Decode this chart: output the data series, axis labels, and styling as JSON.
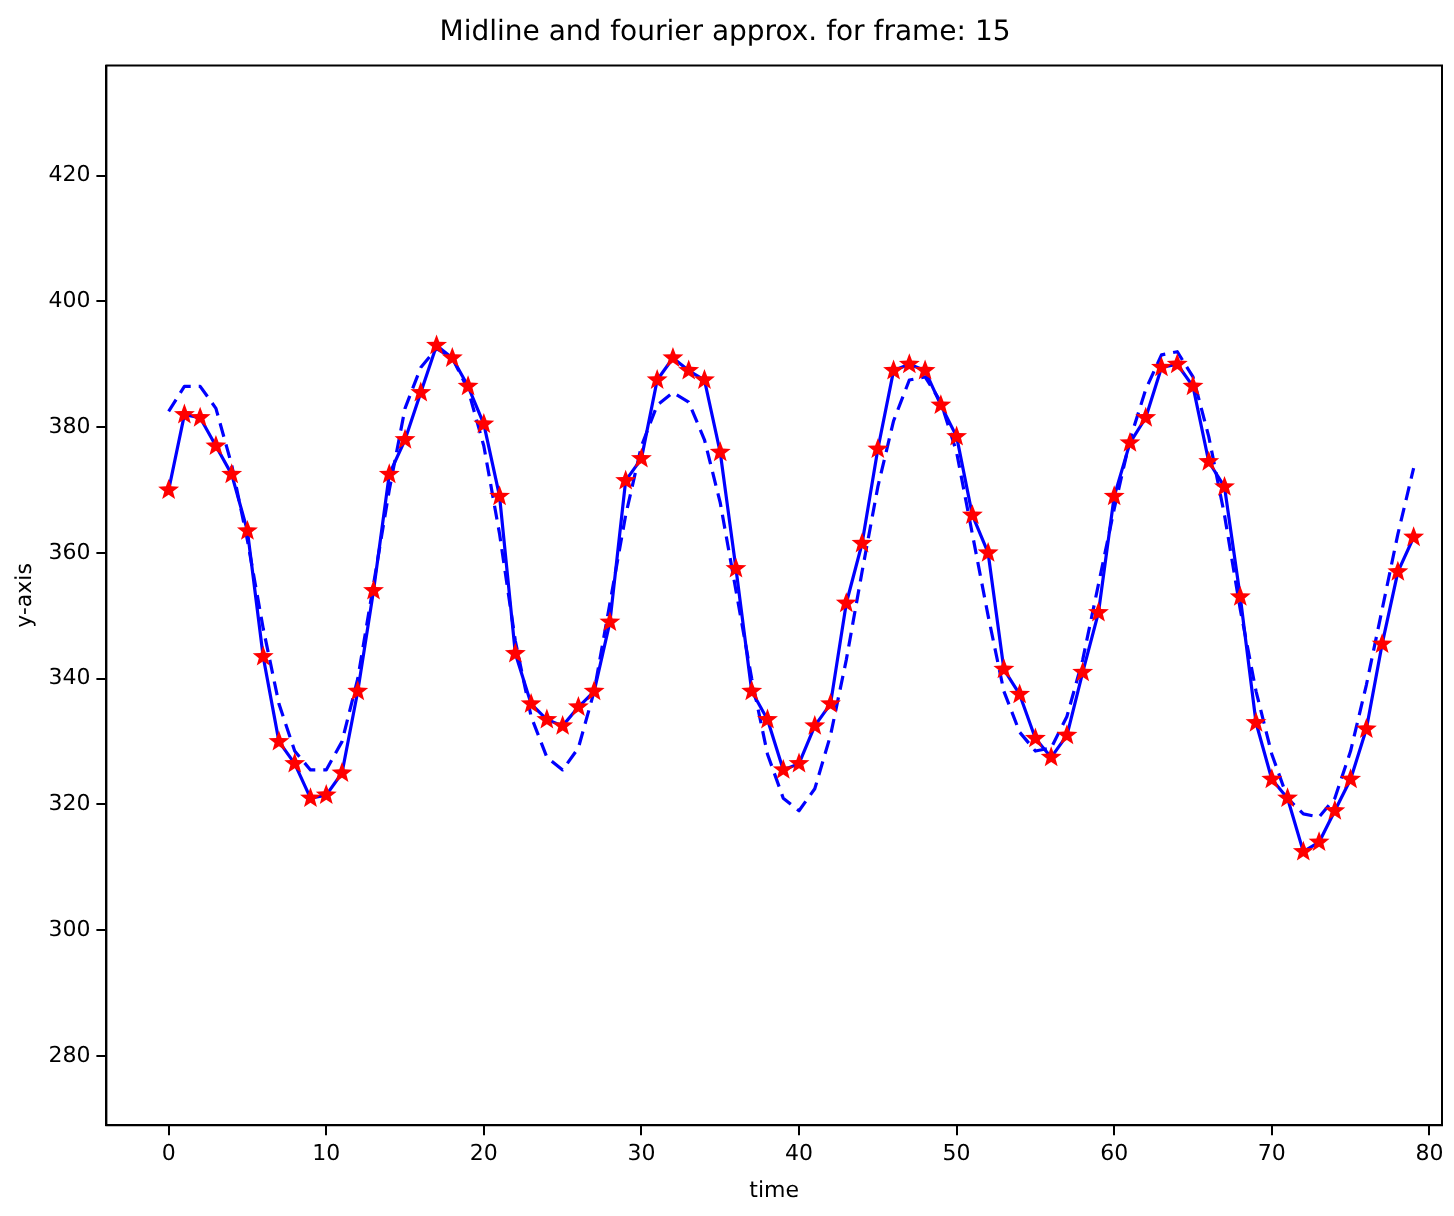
{
  "chart_data": {
    "type": "line",
    "title": "Midline and fourier approx. for frame: 15",
    "xlabel": "time",
    "ylabel": "y-axis",
    "x": [
      0,
      1,
      2,
      3,
      4,
      5,
      6,
      7,
      8,
      9,
      10,
      11,
      12,
      13,
      14,
      15,
      16,
      17,
      18,
      19,
      20,
      21,
      22,
      23,
      24,
      25,
      26,
      27,
      28,
      29,
      30,
      31,
      32,
      33,
      34,
      35,
      36,
      37,
      38,
      39,
      40,
      41,
      42,
      43,
      44,
      45,
      46,
      47,
      48,
      49,
      50,
      51,
      52,
      53,
      54,
      55,
      56,
      57,
      58,
      59,
      60,
      61,
      62,
      63,
      64,
      65,
      66,
      67,
      68,
      69,
      70,
      71,
      72,
      73,
      74,
      75,
      76,
      77,
      78,
      79
    ],
    "series": [
      {
        "type": "line",
        "color": "#0000ff",
        "line_style": "solid",
        "marker": "none",
        "values": [
          370,
          382,
          381.5,
          377,
          372.5,
          363.5,
          343.5,
          330,
          326.5,
          321,
          321.5,
          325,
          338,
          354,
          372.5,
          378,
          385.5,
          393,
          391,
          386.5,
          380.5,
          369,
          344,
          336,
          333.5,
          332.5,
          335.5,
          338,
          349,
          371.5,
          375,
          387.5,
          391,
          389,
          387.5,
          376,
          357.5,
          338,
          333.5,
          325.5,
          326.5,
          332.5,
          336,
          352,
          361.5,
          376.5,
          389,
          390,
          389,
          383.5,
          378.5,
          366,
          360,
          341.5,
          337.5,
          330.5,
          327.5,
          331,
          341,
          350.5,
          369,
          377.5,
          381.5,
          389.5,
          390,
          386.5,
          374.5,
          370.5,
          353,
          333,
          324,
          321,
          312.5,
          314,
          319,
          324,
          332,
          345.5,
          357,
          362.5
        ]
      },
      {
        "type": "line",
        "color": "#0000ff",
        "line_style": "dashed",
        "marker": "none",
        "values": [
          382.5,
          386.5,
          386.5,
          383,
          374,
          362,
          348,
          336,
          328.5,
          325.5,
          325.5,
          330,
          340,
          355,
          370,
          383,
          389.5,
          392.5,
          391,
          386,
          377,
          363,
          346,
          334,
          327.5,
          325.5,
          329,
          338,
          352,
          366,
          377,
          383.5,
          385.5,
          384,
          378,
          368,
          354,
          340,
          328,
          321,
          319,
          322.5,
          331,
          343,
          357,
          370.5,
          381,
          387.5,
          388,
          384,
          376,
          363,
          350,
          338,
          331.5,
          328.5,
          329,
          334,
          343,
          355,
          367,
          378,
          386,
          391.5,
          392,
          388,
          378.5,
          366,
          351,
          338,
          328,
          321,
          318.5,
          318,
          321,
          328.5,
          339,
          351,
          363,
          373.5
        ]
      },
      {
        "type": "scatter",
        "color": "#ff0000",
        "marker": "star",
        "values": [
          370,
          382,
          381.5,
          377,
          372.5,
          363.5,
          343.5,
          330,
          326.5,
          321,
          321.5,
          325,
          338,
          354,
          372.5,
          378,
          385.5,
          393,
          391,
          386.5,
          380.5,
          369,
          344,
          336,
          333.5,
          332.5,
          335.5,
          338,
          349,
          371.5,
          375,
          387.5,
          391,
          389,
          387.5,
          376,
          357.5,
          338,
          333.5,
          325.5,
          326.5,
          332.5,
          336,
          352,
          361.5,
          376.5,
          389,
          390,
          389,
          383.5,
          378.5,
          366,
          360,
          341.5,
          337.5,
          330.5,
          327.5,
          331,
          341,
          350.5,
          369,
          377.5,
          381.5,
          389.5,
          390,
          386.5,
          374.5,
          370.5,
          353,
          333,
          324,
          321,
          312.5,
          314,
          319,
          324,
          332,
          345.5,
          357,
          362.5
        ]
      }
    ],
    "xlim": [
      -3.95,
      80.8
    ],
    "xticks": [
      0,
      10,
      20,
      30,
      40,
      50,
      60,
      70,
      80
    ],
    "ylim": [
      269,
      437.5
    ],
    "yticks": [
      280,
      300,
      320,
      340,
      360,
      380,
      400,
      420
    ],
    "grid": false,
    "legend": false
  }
}
